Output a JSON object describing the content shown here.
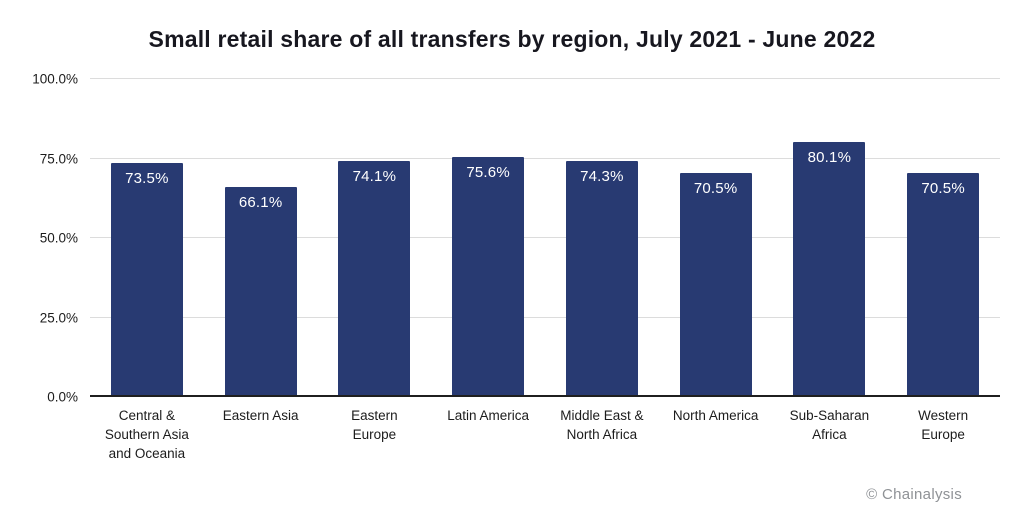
{
  "chart_data": {
    "type": "bar",
    "title": "Small retail share of all transfers by region, July 2021 - June 2022",
    "categories": [
      "Central & Southern Asia and Oceania",
      "Eastern Asia",
      "Eastern Europe",
      "Latin America",
      "Middle East & North Africa",
      "North America",
      "Sub-Saharan Africa",
      "Western Europe"
    ],
    "category_display": [
      "Central &\nSouthern Asia\nand Oceania",
      "Eastern Asia",
      "Eastern\nEurope",
      "Latin America",
      "Middle East &\nNorth Africa",
      "North America",
      "Sub-Saharan\nAfrica",
      "Western\nEurope"
    ],
    "values": [
      73.5,
      66.1,
      74.1,
      75.6,
      74.3,
      70.5,
      80.1,
      70.5
    ],
    "value_labels": [
      "73.5%",
      "66.1%",
      "74.1%",
      "75.6%",
      "74.3%",
      "70.5%",
      "80.1%",
      "70.5%"
    ],
    "xlabel": "",
    "ylabel": "",
    "ylim": [
      0,
      100
    ],
    "y_tick_values": [
      0,
      25,
      50,
      75,
      100
    ],
    "y_tick_labels": [
      "0.0%",
      "25.0%",
      "50.0%",
      "75.0%",
      "100.0%"
    ],
    "grid": true,
    "legend": "none",
    "bar_color": "#283a72",
    "value_label_color": "#ffffff",
    "gridline_color": "#dcdcdc",
    "baseline_color": "#1f1f1f"
  },
  "watermark": "© Chainalysis"
}
